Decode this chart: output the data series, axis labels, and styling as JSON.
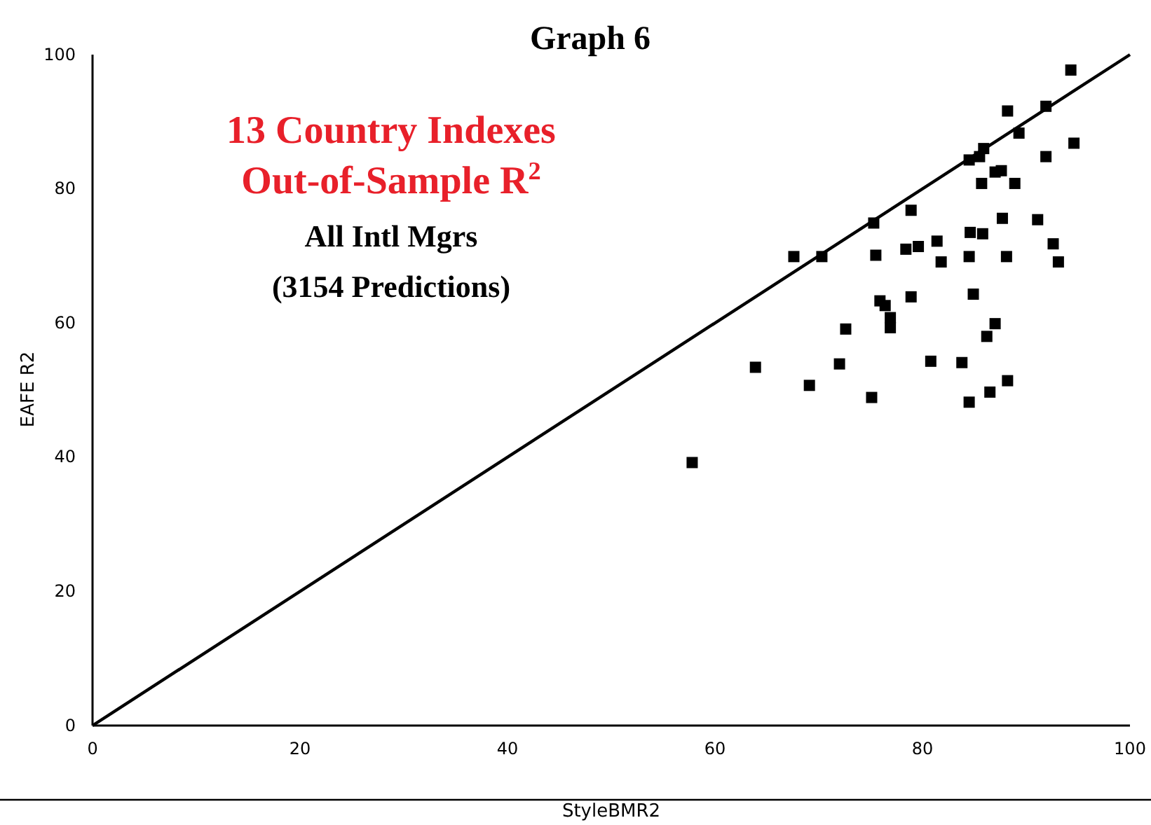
{
  "chart_data": {
    "type": "scatter",
    "title": "Graph 6",
    "xlabel": "StyleBMR2",
    "ylabel": "EAFE R2",
    "xlim": [
      0,
      100
    ],
    "ylim": [
      0,
      100
    ],
    "xticks": [
      0,
      20,
      40,
      60,
      80,
      100
    ],
    "yticks": [
      0,
      20,
      40,
      60,
      80,
      100
    ],
    "grid": false,
    "annotations": [
      "13 Country Indexes",
      "Out-of-Sample R$^{2}$",
      "All Intl Mgrs",
      "(3154 Predictions)"
    ],
    "series": [
      {
        "color": "#000000",
        "marker": "square",
        "x": [
          57.8,
          63.9,
          69.1,
          67.6,
          70.3,
          72.0,
          72.6,
          75.1,
          75.3,
          75.5,
          75.9,
          76.4,
          76.9,
          76.9,
          78.4,
          78.9,
          78.9,
          79.6,
          80.8,
          81.4,
          81.8,
          83.8,
          84.5,
          84.5,
          84.5,
          84.6,
          84.9,
          85.5,
          85.7,
          85.8,
          85.9,
          86.2,
          86.5,
          87.0,
          87.0,
          87.6,
          87.7,
          88.1,
          88.2,
          88.2,
          88.9,
          89.3,
          91.1,
          91.9,
          91.9,
          92.6,
          93.1,
          94.3,
          94.6
        ],
        "values": [
          39.2,
          53.4,
          50.7,
          69.9,
          69.9,
          53.9,
          59.1,
          48.9,
          74.9,
          70.1,
          63.3,
          62.6,
          60.8,
          59.3,
          71.0,
          63.9,
          76.8,
          71.4,
          54.3,
          72.2,
          69.1,
          54.1,
          84.3,
          69.9,
          48.2,
          73.5,
          64.3,
          84.8,
          80.8,
          73.3,
          86.0,
          58.0,
          49.7,
          82.5,
          59.9,
          82.7,
          75.6,
          69.9,
          91.6,
          51.4,
          80.8,
          88.3,
          75.4,
          92.3,
          84.8,
          71.8,
          69.1,
          97.7,
          86.8
        ]
      },
      {
        "type": "line",
        "color": "#000000",
        "x": [
          0,
          100
        ],
        "values": [
          0,
          100
        ]
      }
    ]
  }
}
